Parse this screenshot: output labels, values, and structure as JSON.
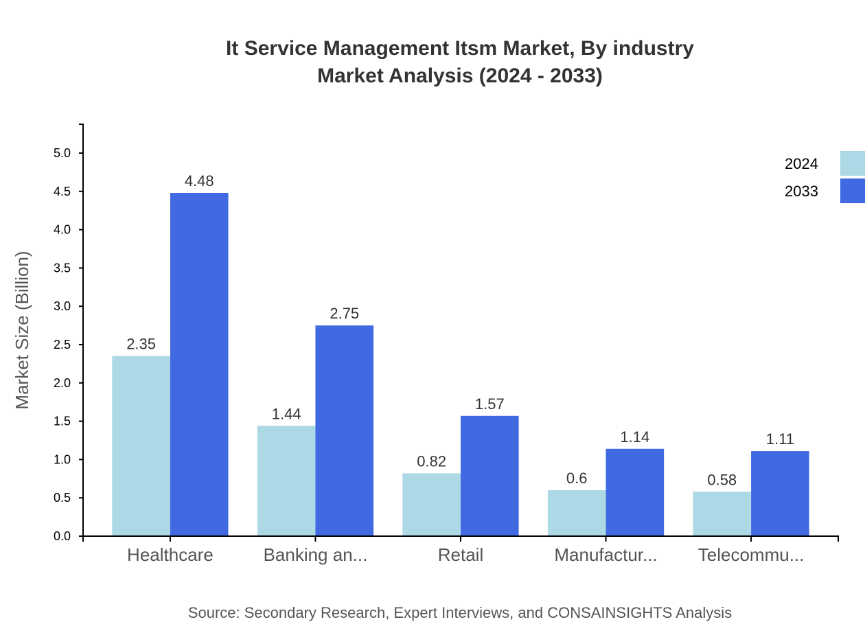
{
  "chart_data": {
    "type": "bar",
    "title": "It Service Management Itsm Market, By industry",
    "subtitle": "Market Analysis (2024 - 2033)",
    "xlabel": "",
    "ylabel": "Market Size (Billion)",
    "ylim": [
      0,
      5.376
    ],
    "yticks": [
      "0.0",
      "0.5",
      "1.0",
      "1.5",
      "2.0",
      "2.5",
      "3.0",
      "3.5",
      "4.0",
      "4.5",
      "5.0"
    ],
    "grid": false,
    "legend_position": "top-right",
    "categories": [
      "Healthcare",
      "Banking an...",
      "Retail",
      "Manufactur...",
      "Telecommu..."
    ],
    "series": [
      {
        "name": "2024",
        "color": "#add8e6",
        "values": [
          2.35,
          1.44,
          0.82,
          0.6,
          0.58
        ]
      },
      {
        "name": "2033",
        "color": "#4169e1",
        "values": [
          4.48,
          2.75,
          1.57,
          1.14,
          1.11
        ]
      }
    ],
    "source": "Source: Secondary Research, Expert Interviews, and CONSAINSIGHTS Analysis"
  }
}
